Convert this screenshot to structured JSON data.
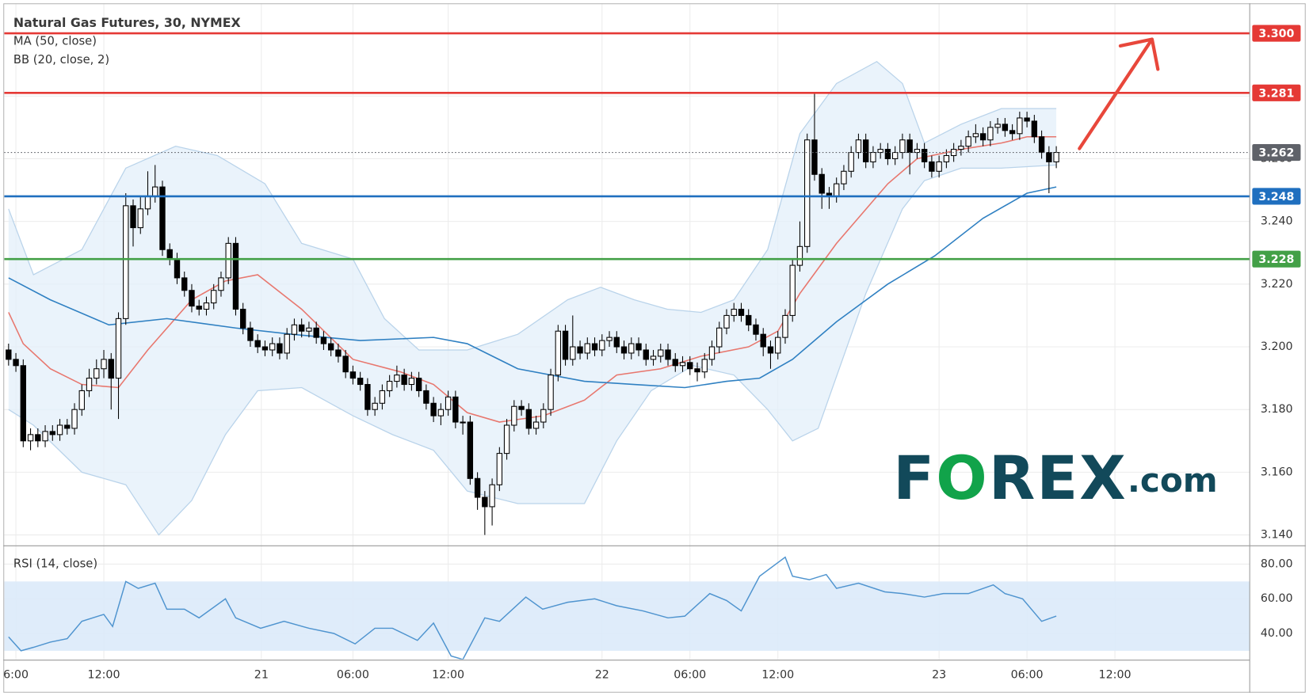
{
  "chart_data": {
    "type": "candlestick",
    "title": "Natural Gas Futures, 30, NYMEX",
    "indicators": [
      "MA (50, close)",
      "BB (20, close, 2)"
    ],
    "logo": [
      "F",
      "O",
      "REX",
      ".com"
    ],
    "x": [
      0,
      1,
      2,
      3,
      4,
      5,
      6,
      7,
      8,
      9,
      10,
      11,
      12,
      13,
      14,
      15,
      16,
      17,
      18,
      19,
      20,
      21,
      22,
      23,
      24,
      25,
      26,
      27,
      28,
      29,
      30,
      31,
      32,
      33,
      34,
      35,
      36,
      37,
      38,
      39,
      40,
      41,
      42,
      43,
      44,
      45,
      46,
      47,
      48,
      49,
      50,
      51,
      52,
      53,
      54,
      55,
      56,
      57,
      58,
      59,
      60,
      61,
      62,
      63,
      64,
      65,
      66,
      67,
      68,
      69,
      70,
      71,
      72,
      73,
      74,
      75,
      76,
      77,
      78,
      79,
      80,
      81,
      82,
      83,
      84,
      85,
      86,
      87,
      88,
      89,
      90,
      91,
      92,
      93,
      94,
      95,
      96,
      97,
      98,
      99,
      100,
      101,
      102,
      103,
      104,
      105,
      106,
      107,
      108,
      109,
      110,
      111,
      112,
      113,
      114,
      115,
      116,
      117,
      118,
      119,
      120,
      121,
      122,
      123,
      124,
      125,
      126,
      127,
      128,
      129,
      130,
      131,
      132,
      133,
      134,
      135,
      136,
      137,
      138,
      139,
      140,
      141,
      142,
      143
    ],
    "open": [
      3.199,
      3.196,
      3.194,
      3.17,
      3.172,
      3.17,
      3.173,
      3.172,
      3.175,
      3.174,
      3.18,
      3.186,
      3.19,
      3.193,
      3.196,
      3.19,
      3.209,
      3.245,
      3.238,
      3.244,
      3.248,
      3.251,
      3.231,
      3.228,
      3.222,
      3.218,
      3.213,
      3.212,
      3.214,
      3.218,
      3.222,
      3.233,
      3.212,
      3.206,
      3.202,
      3.2,
      3.199,
      3.201,
      3.198,
      3.204,
      3.207,
      3.205,
      3.206,
      3.203,
      3.201,
      3.199,
      3.197,
      3.192,
      3.19,
      3.188,
      3.18,
      3.182,
      3.186,
      3.189,
      3.191,
      3.188,
      3.19,
      3.186,
      3.182,
      3.178,
      3.18,
      3.184,
      3.176,
      3.176,
      3.158,
      3.152,
      3.149,
      3.156,
      3.166,
      3.175,
      3.181,
      3.18,
      3.174,
      3.176,
      3.18,
      3.191,
      3.205,
      3.196,
      3.2,
      3.198,
      3.201,
      3.199,
      3.202,
      3.203,
      3.2,
      3.198,
      3.201,
      3.199,
      3.196,
      3.197,
      3.199,
      3.196,
      3.194,
      3.195,
      3.193,
      3.192,
      3.196,
      3.2,
      3.206,
      3.21,
      3.212,
      3.21,
      3.207,
      3.204,
      3.2,
      3.198,
      3.203,
      3.21,
      3.226,
      3.232,
      3.266,
      3.255,
      3.249,
      3.248,
      3.252,
      3.256,
      3.262,
      3.266,
      3.259,
      3.262,
      3.263,
      3.26,
      3.262,
      3.266,
      3.262,
      3.263,
      3.259,
      3.256,
      3.259,
      3.261,
      3.263,
      3.264,
      3.267,
      3.268,
      3.266,
      3.27,
      3.271,
      3.269,
      3.268,
      3.273,
      3.272,
      3.267,
      3.262,
      3.259
    ],
    "high": [
      3.201,
      3.198,
      3.196,
      3.174,
      3.174,
      3.175,
      3.175,
      3.177,
      3.177,
      3.182,
      3.188,
      3.193,
      3.196,
      3.199,
      3.198,
      3.211,
      3.249,
      3.247,
      3.248,
      3.256,
      3.258,
      3.253,
      3.233,
      3.23,
      3.224,
      3.22,
      3.215,
      3.216,
      3.22,
      3.224,
      3.235,
      3.235,
      3.214,
      3.208,
      3.204,
      3.202,
      3.203,
      3.203,
      3.206,
      3.209,
      3.209,
      3.208,
      3.208,
      3.205,
      3.203,
      3.201,
      3.199,
      3.194,
      3.192,
      3.19,
      3.184,
      3.188,
      3.191,
      3.194,
      3.193,
      3.192,
      3.192,
      3.188,
      3.184,
      3.182,
      3.186,
      3.186,
      3.178,
      3.178,
      3.16,
      3.154,
      3.158,
      3.168,
      3.177,
      3.183,
      3.183,
      3.182,
      3.178,
      3.182,
      3.193,
      3.207,
      3.207,
      3.21,
      3.202,
      3.203,
      3.203,
      3.204,
      3.205,
      3.205,
      3.202,
      3.203,
      3.203,
      3.201,
      3.199,
      3.201,
      3.201,
      3.198,
      3.197,
      3.197,
      3.195,
      3.198,
      3.202,
      3.208,
      3.212,
      3.214,
      3.214,
      3.212,
      3.209,
      3.206,
      3.202,
      3.205,
      3.212,
      3.228,
      3.24,
      3.268,
      3.281,
      3.257,
      3.251,
      3.254,
      3.258,
      3.264,
      3.268,
      3.268,
      3.264,
      3.265,
      3.265,
      3.264,
      3.268,
      3.268,
      3.265,
      3.265,
      3.261,
      3.261,
      3.263,
      3.265,
      3.266,
      3.269,
      3.271,
      3.27,
      3.272,
      3.273,
      3.273,
      3.271,
      3.275,
      3.275,
      3.274,
      3.269,
      3.264,
      3.264
    ],
    "low": [
      3.194,
      3.192,
      3.168,
      3.167,
      3.168,
      3.168,
      3.17,
      3.17,
      3.172,
      3.172,
      3.178,
      3.184,
      3.188,
      3.19,
      3.18,
      3.177,
      3.207,
      3.232,
      3.236,
      3.242,
      3.246,
      3.229,
      3.226,
      3.22,
      3.216,
      3.211,
      3.21,
      3.21,
      3.212,
      3.216,
      3.22,
      3.21,
      3.204,
      3.2,
      3.198,
      3.197,
      3.197,
      3.196,
      3.196,
      3.202,
      3.203,
      3.203,
      3.201,
      3.199,
      3.197,
      3.195,
      3.19,
      3.188,
      3.186,
      3.178,
      3.178,
      3.18,
      3.184,
      3.187,
      3.186,
      3.186,
      3.184,
      3.18,
      3.176,
      3.175,
      3.178,
      3.174,
      3.172,
      3.156,
      3.148,
      3.14,
      3.143,
      3.154,
      3.164,
      3.173,
      3.178,
      3.172,
      3.172,
      3.174,
      3.178,
      3.189,
      3.194,
      3.194,
      3.196,
      3.196,
      3.197,
      3.197,
      3.2,
      3.198,
      3.196,
      3.196,
      3.197,
      3.194,
      3.194,
      3.195,
      3.194,
      3.192,
      3.192,
      3.191,
      3.189,
      3.19,
      3.194,
      3.198,
      3.204,
      3.208,
      3.208,
      3.205,
      3.202,
      3.197,
      3.193,
      3.196,
      3.201,
      3.208,
      3.224,
      3.23,
      3.253,
      3.244,
      3.244,
      3.246,
      3.25,
      3.254,
      3.26,
      3.257,
      3.257,
      3.26,
      3.258,
      3.258,
      3.26,
      3.255,
      3.26,
      3.257,
      3.254,
      3.254,
      3.257,
      3.259,
      3.261,
      3.262,
      3.265,
      3.264,
      3.264,
      3.268,
      3.267,
      3.266,
      3.266,
      3.27,
      3.265,
      3.26,
      3.249,
      3.257
    ],
    "close": [
      3.196,
      3.194,
      3.17,
      3.172,
      3.17,
      3.173,
      3.172,
      3.175,
      3.174,
      3.18,
      3.186,
      3.19,
      3.193,
      3.196,
      3.19,
      3.209,
      3.245,
      3.238,
      3.244,
      3.248,
      3.251,
      3.231,
      3.228,
      3.222,
      3.218,
      3.213,
      3.212,
      3.214,
      3.218,
      3.222,
      3.233,
      3.212,
      3.206,
      3.202,
      3.2,
      3.199,
      3.201,
      3.198,
      3.204,
      3.207,
      3.205,
      3.206,
      3.203,
      3.201,
      3.199,
      3.197,
      3.192,
      3.19,
      3.188,
      3.18,
      3.182,
      3.186,
      3.189,
      3.191,
      3.188,
      3.19,
      3.186,
      3.182,
      3.178,
      3.18,
      3.184,
      3.176,
      3.176,
      3.158,
      3.152,
      3.149,
      3.156,
      3.166,
      3.175,
      3.181,
      3.18,
      3.174,
      3.176,
      3.18,
      3.191,
      3.205,
      3.196,
      3.2,
      3.198,
      3.201,
      3.199,
      3.202,
      3.203,
      3.2,
      3.198,
      3.201,
      3.199,
      3.196,
      3.197,
      3.199,
      3.196,
      3.194,
      3.195,
      3.193,
      3.192,
      3.196,
      3.2,
      3.206,
      3.21,
      3.212,
      3.21,
      3.207,
      3.204,
      3.2,
      3.198,
      3.203,
      3.21,
      3.226,
      3.232,
      3.266,
      3.255,
      3.249,
      3.248,
      3.252,
      3.256,
      3.262,
      3.266,
      3.259,
      3.262,
      3.263,
      3.26,
      3.262,
      3.266,
      3.262,
      3.263,
      3.259,
      3.256,
      3.259,
      3.261,
      3.263,
      3.264,
      3.267,
      3.268,
      3.266,
      3.27,
      3.271,
      3.269,
      3.268,
      3.273,
      3.272,
      3.267,
      3.262,
      3.259,
      3.262
    ],
    "up_color": "#ffffff",
    "down_color": "#000000",
    "wick_color": "#000000",
    "bollinger": {
      "fill": "#e3effa",
      "edge": "#b9d3ea",
      "upper": {
        "x": [
          0,
          3.4,
          10,
          16,
          22.8,
          28.5,
          35,
          40,
          47,
          51.3,
          56,
          62.6,
          69.5,
          76.3,
          80.8,
          85.4,
          89.9,
          94.5,
          99,
          103.6,
          108,
          113,
          118.5,
          122,
          125,
          130,
          135.5,
          143
        ],
        "values": [
          3.244,
          3.223,
          3.231,
          3.257,
          3.264,
          3.261,
          3.252,
          3.233,
          3.228,
          3.209,
          3.199,
          3.199,
          3.204,
          3.215,
          3.219,
          3.215,
          3.212,
          3.211,
          3.215,
          3.231,
          3.268,
          3.284,
          3.291,
          3.284,
          3.265,
          3.271,
          3.276,
          3.276
        ]
      },
      "lower": {
        "x": [
          0,
          3.4,
          10,
          16,
          20.5,
          25,
          29.6,
          34,
          40,
          47,
          52.4,
          58,
          62.6,
          69.5,
          78.6,
          83,
          87.7,
          93.4,
          99,
          103.6,
          107,
          110.5,
          117,
          122,
          125,
          130,
          135.5,
          143
        ],
        "values": [
          3.18,
          3.175,
          3.16,
          3.156,
          3.14,
          3.151,
          3.172,
          3.186,
          3.187,
          3.178,
          3.172,
          3.167,
          3.154,
          3.15,
          3.15,
          3.17,
          3.186,
          3.194,
          3.191,
          3.18,
          3.17,
          3.174,
          3.217,
          3.244,
          3.253,
          3.257,
          3.257,
          3.258
        ]
      }
    },
    "lines": [
      {
        "color": "#e8776e",
        "x": [
          0,
          2,
          5.7,
          10,
          15,
          19,
          25,
          29.6,
          34,
          40,
          47,
          53.5,
          58,
          62.6,
          67,
          73,
          78.6,
          83,
          89,
          94.5,
          101,
          105,
          108,
          113,
          120,
          124,
          130,
          135.5,
          139,
          143
        ],
        "values": [
          3.211,
          3.201,
          3.193,
          3.188,
          3.187,
          3.199,
          3.215,
          3.221,
          3.223,
          3.212,
          3.196,
          3.192,
          3.188,
          3.179,
          3.176,
          3.178,
          3.183,
          3.191,
          3.193,
          3.197,
          3.2,
          3.205,
          3.217,
          3.233,
          3.252,
          3.26,
          3.263,
          3.265,
          3.267,
          3.267
        ]
      },
      {
        "color": "#2f80c2",
        "x": [
          0,
          5.7,
          13.7,
          21.6,
          31,
          38.7,
          48,
          58,
          62.6,
          69.5,
          78.6,
          85.4,
          92.3,
          98,
          102.5,
          107,
          113,
          120,
          126.4,
          133,
          139,
          143
        ],
        "values": [
          3.222,
          3.215,
          3.207,
          3.209,
          3.206,
          3.204,
          3.202,
          3.203,
          3.201,
          3.193,
          3.189,
          3.188,
          3.187,
          3.189,
          3.19,
          3.196,
          3.208,
          3.22,
          3.229,
          3.241,
          3.249,
          3.251
        ]
      }
    ],
    "levels": [
      {
        "value": 3.3,
        "label": "3.300",
        "color": "#e53935"
      },
      {
        "value": 3.281,
        "label": "3.281",
        "color": "#e53935"
      },
      {
        "value": 3.248,
        "label": "3.248",
        "color": "#1f6fbf"
      },
      {
        "value": 3.228,
        "label": "3.228",
        "color": "#43a047"
      }
    ],
    "current": {
      "value": 3.262,
      "label": "3.262",
      "color": "#5f6269"
    },
    "xlim": [
      -0.6,
      169.4
    ],
    "xticks": [
      {
        "value": 1,
        "label": "6:00"
      },
      {
        "value": 13,
        "label": "12:00"
      },
      {
        "value": 34.5,
        "label": "21"
      },
      {
        "value": 47,
        "label": "06:00"
      },
      {
        "value": 60,
        "label": "12:00"
      },
      {
        "value": 81,
        "label": "22"
      },
      {
        "value": 93,
        "label": "06:00"
      },
      {
        "value": 105,
        "label": "12:00"
      },
      {
        "value": 127,
        "label": "23"
      },
      {
        "value": 139,
        "label": "06:00"
      },
      {
        "value": 151,
        "label": "12:00"
      }
    ],
    "ylim": [
      3.1368,
      3.3093
    ],
    "yticks": [
      {
        "value": 3.14,
        "label": "3.140"
      },
      {
        "value": 3.16,
        "label": "3.160"
      },
      {
        "value": 3.18,
        "label": "3.180"
      },
      {
        "value": 3.2,
        "label": "3.200"
      },
      {
        "value": 3.22,
        "label": "3.220"
      },
      {
        "value": 3.24,
        "label": "3.240"
      },
      {
        "value": 3.26,
        "label": "3.260"
      },
      {
        "value": 3.28,
        "label": "3.280"
      },
      {
        "value": 3.3,
        "label": "3.300"
      }
    ],
    "grid": true,
    "rsi": {
      "title": "RSI (14, close)",
      "color": "#4f94cf",
      "band": [
        30,
        70
      ],
      "band_color": "#dbeafa",
      "x": [
        0,
        1.7,
        3.4,
        5.7,
        8,
        10,
        13,
        14.2,
        16,
        17.7,
        20,
        21.6,
        24,
        26,
        29.6,
        31,
        34.4,
        37.6,
        41,
        44.4,
        47.3,
        50,
        52.4,
        55.8,
        58,
        60.4,
        62,
        65,
        67,
        70.6,
        72.9,
        76.3,
        80,
        83,
        86.6,
        90,
        92.3,
        95.7,
        98,
        100,
        102.5,
        106,
        107,
        109.3,
        111.6,
        113,
        116,
        119.6,
        122,
        125,
        127.6,
        131,
        134.4,
        136,
        138.4,
        141,
        143
      ],
      "values": [
        38,
        30,
        32,
        35,
        37,
        47,
        51,
        44,
        70,
        66,
        69,
        54,
        54,
        49,
        60,
        49,
        43,
        47,
        43,
        40,
        34,
        43,
        43,
        36,
        46,
        27,
        25,
        49,
        47,
        61,
        54,
        58,
        60,
        56,
        53,
        49,
        50,
        63,
        59,
        53,
        73,
        84,
        73,
        71,
        74,
        66,
        69,
        64,
        63,
        61,
        63,
        63,
        68,
        63,
        60,
        47,
        50
      ],
      "ylim": [
        25.1,
        90.1
      ],
      "yticks": [
        {
          "value": 40,
          "label": "40.00"
        },
        {
          "value": 60,
          "label": "60.00"
        },
        {
          "value": 80,
          "label": "80.00"
        }
      ]
    }
  }
}
